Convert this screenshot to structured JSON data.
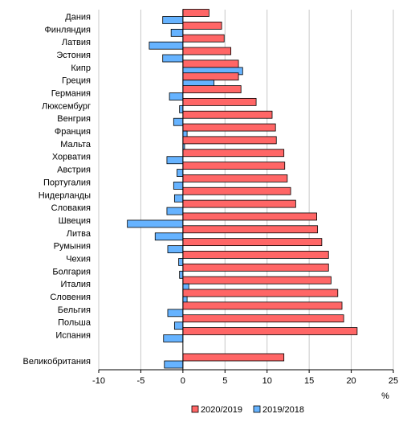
{
  "chart_data": {
    "type": "bar",
    "orientation": "horizontal",
    "categories": [
      "Дания",
      "Финляндия",
      "Латвия",
      "Эстония",
      "Кипр",
      "Греция",
      "Германия",
      "Люксембург",
      "Венгрия",
      "Франция",
      "Мальта",
      "Хорватия",
      "Австрия",
      "Португалия",
      "Нидерланды",
      "Словакия",
      "Швеция",
      "Литва",
      "Румыния",
      "Чехия",
      "Болгария",
      "Италия",
      "Словения",
      "Бельгия",
      "Польша",
      "Испания",
      "Великобритания"
    ],
    "series": [
      {
        "name": "2020/2019",
        "color": "#ff6666",
        "values": [
          3.1,
          4.6,
          4.9,
          5.7,
          6.6,
          6.6,
          6.9,
          8.7,
          10.6,
          11.0,
          11.1,
          12.0,
          12.1,
          12.4,
          12.8,
          13.4,
          15.9,
          16.0,
          16.5,
          17.3,
          17.3,
          17.6,
          18.4,
          18.9,
          19.1,
          20.7,
          12.0
        ]
      },
      {
        "name": "2019/2018",
        "color": "#66b3ff",
        "values": [
          -2.4,
          -1.4,
          -4.0,
          -2.4,
          7.1,
          3.7,
          -1.6,
          -0.4,
          -1.1,
          0.5,
          0.2,
          -1.9,
          -0.7,
          -1.1,
          -1.0,
          -1.9,
          -6.6,
          -3.3,
          -1.8,
          -0.5,
          -0.4,
          0.7,
          0.5,
          -1.8,
          -1.0,
          -2.3,
          -2.2
        ]
      }
    ],
    "xlabel": "%",
    "ylabel": "",
    "xlim": [
      -10,
      25
    ],
    "xticks": [
      -10,
      -5,
      0,
      5,
      10,
      15,
      20,
      25
    ],
    "grid": true,
    "legend_position": "bottom"
  }
}
